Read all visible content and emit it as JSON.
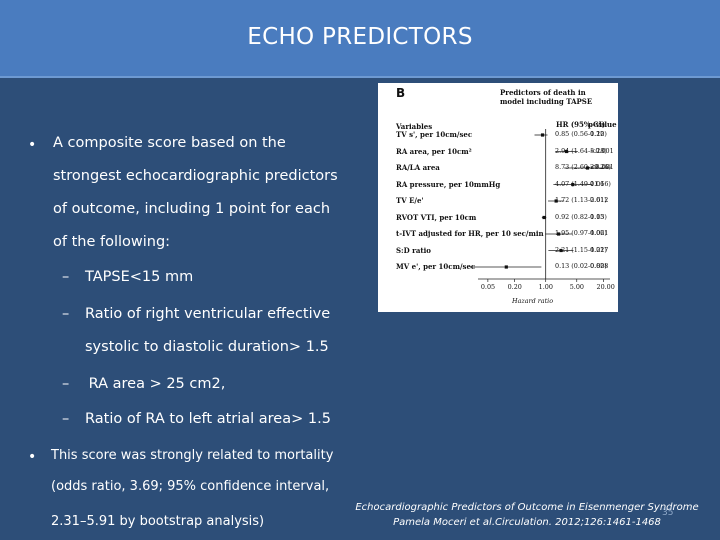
{
  "title": "ECHO PREDICTORS",
  "bullets": {
    "bullet_char": "•",
    "dash_char": "–",
    "b1_lines": [
      "A composite score based on the",
      "strongest echocardiographic predictors",
      "of outcome, including 1 point for each",
      "of the following:"
    ],
    "sub_items": [
      [
        "TAPSE<15 mm"
      ],
      [
        "Ratio of right ventricular effective",
        "systolic to diastolic duration> 1.5"
      ],
      [
        " RA area > 25 cm2,"
      ],
      [
        "Ratio of RA to left atrial area> 1.5"
      ]
    ],
    "b2_lines": [
      "This score was strongly related to mortality",
      "(odds ratio, 3.69; 95%  confidence interval,",
      "2.31–5.91 by bootstrap analysis)"
    ]
  },
  "figure": {
    "panel_letter": "B",
    "heading_line1": "Predictors of death in",
    "heading_line2": "model including TAPSE",
    "col_variables": "Variables",
    "col_hr": "HR (95% CI)",
    "col_p": "p-value",
    "x_axis_label": "Hazard ratio",
    "chart_data": {
      "type": "scatter",
      "title": "Predictors of death in model including TAPSE",
      "xlabel": "Hazard ratio",
      "x_scale": "log",
      "x_ticks": [
        "0.05",
        "0.20",
        "1.00",
        "5.00",
        "20.00"
      ],
      "xlim": [
        0.03,
        28
      ],
      "reference_line": 1.0,
      "rows": [
        {
          "variable": "TV s', per 10cm/sec",
          "hr": 0.85,
          "lo": 0.56,
          "hi": 1.1,
          "hr_text": "0.85 (0.56-1.10)",
          "p": "0.22"
        },
        {
          "variable": "RA area, per 10cm²",
          "hr": 2.94,
          "lo": 1.64,
          "hi": 5.28,
          "hr_text": "2.94 (1.64-5.28)",
          "p": "<0.001"
        },
        {
          "variable": "RA/LA area",
          "hr": 8.73,
          "lo": 2.6,
          "hi": 29.26,
          "hr_text": "8.73 (2.60-29.26)",
          "p": "<0.001"
        },
        {
          "variable": "RA pressure, per 10mmHg",
          "hr": 4.07,
          "lo": 1.49,
          "hi": 11.16,
          "hr_text": "4.07 (1.49-11.16)",
          "p": "0.06"
        },
        {
          "variable": "TV E/e'",
          "hr": 1.72,
          "lo": 1.13,
          "hi": 2.61,
          "hr_text": "1.72 (1.13-2.61)",
          "p": "0.012"
        },
        {
          "variable": "RVOT VTI, per 10cm",
          "hr": 0.92,
          "lo": 0.82,
          "hi": 1.03,
          "hr_text": "0.92 (0.82-1.03)",
          "p": "0.15"
        },
        {
          "variable": "t-IVT adjusted for HR, per 10 sec/min",
          "hr": 1.95,
          "lo": 0.97,
          "hi": 4.02,
          "hr_text": "1.95 (0.97-4.02)",
          "p": "0.061"
        },
        {
          "variable": "S:D ratio",
          "hr": 2.21,
          "lo": 1.15,
          "hi": 4.22,
          "hr_text": "2.21 (1.15-4.22)",
          "p": "0.017"
        },
        {
          "variable": "MV e', per 10cm/sec",
          "hr": 0.13,
          "lo": 0.02,
          "hi": 0.8,
          "hr_text": "0.13 (0.02-0.80)",
          "p": "0.028"
        }
      ]
    }
  },
  "citation": {
    "line1": "Echocardiographic Predictors of Outcome in Eisenmenger Syndrome",
    "line2": "Pamela Moceri et al.Circulation. 2012;126:1461-1468"
  },
  "slide_number": "35"
}
